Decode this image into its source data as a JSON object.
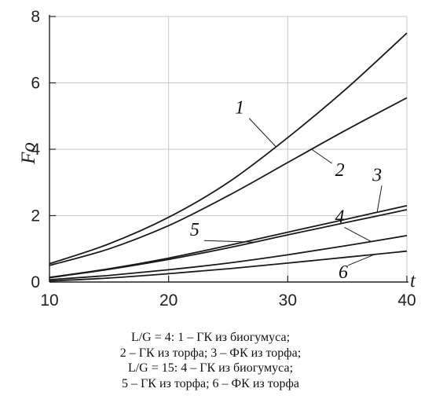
{
  "chart_data": {
    "type": "line",
    "title": "",
    "xlabel": "t",
    "ylabel": "Fo",
    "xlim": [
      10,
      40
    ],
    "ylim": [
      0,
      8
    ],
    "xticks": [
      10,
      20,
      30,
      40
    ],
    "yticks": [
      0,
      2,
      4,
      6,
      8
    ],
    "grid": true,
    "x": [
      10,
      15,
      20,
      25,
      30,
      35,
      40
    ],
    "series": [
      {
        "name": "1",
        "values": [
          0.55,
          1.15,
          1.95,
          3.0,
          4.35,
          5.85,
          7.5
        ]
      },
      {
        "name": "2",
        "values": [
          0.5,
          1.0,
          1.7,
          2.6,
          3.6,
          4.6,
          5.55
        ]
      },
      {
        "name": "3",
        "values": [
          0.14,
          0.4,
          0.72,
          1.1,
          1.5,
          1.9,
          2.3
        ]
      },
      {
        "name": "4",
        "values": [
          0.07,
          0.2,
          0.37,
          0.57,
          0.82,
          1.1,
          1.4
        ]
      },
      {
        "name": "5",
        "values": [
          0.13,
          0.38,
          0.68,
          1.03,
          1.42,
          1.8,
          2.18
        ]
      },
      {
        "name": "6",
        "values": [
          0.03,
          0.12,
          0.25,
          0.4,
          0.57,
          0.75,
          0.93
        ]
      }
    ]
  },
  "caption": {
    "lines": [
      "L/G = 4: 1 – ГК из биогумуса;",
      "2 – ГК из торфа; 3 – ФК из торфа;",
      "L/G = 15: 4 – ГК из биогумуса;",
      "5 – ГК из торфа; 6 – ФК из торфа"
    ]
  }
}
